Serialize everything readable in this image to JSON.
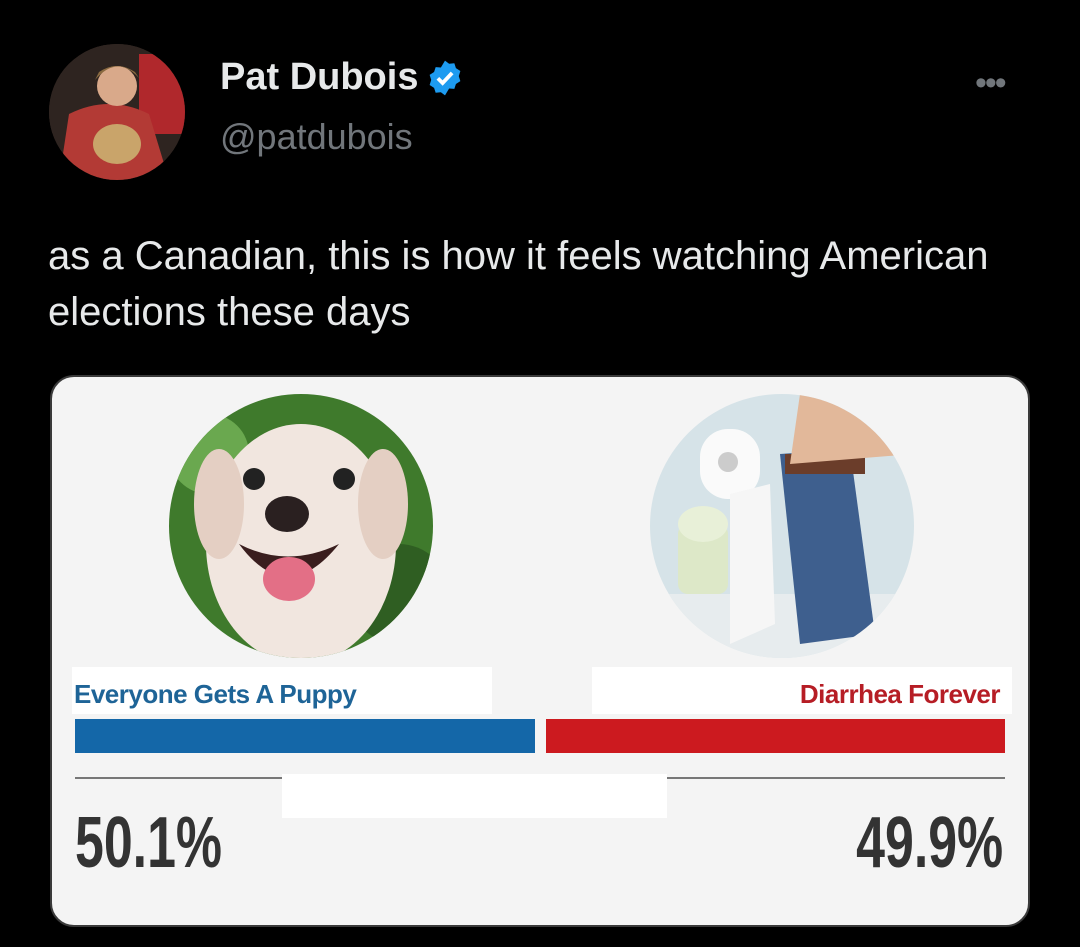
{
  "author": {
    "name": "Pat Dubois",
    "handle": "@patdubois",
    "verified": true,
    "verified_color": "#1d9bf0"
  },
  "more_icon": "more-horizontal-icon",
  "tweet_text": "as a Canadian, this is how it feels watching American elections these days",
  "media": {
    "left": {
      "label": "Everyone Gets A Puppy",
      "percent": "50.1%",
      "value": 50.1,
      "color": "#1467a8"
    },
    "right": {
      "label": "Diarrhea Forever",
      "percent": "49.9%",
      "value": 49.9,
      "color": "#cc1a1f"
    }
  }
}
